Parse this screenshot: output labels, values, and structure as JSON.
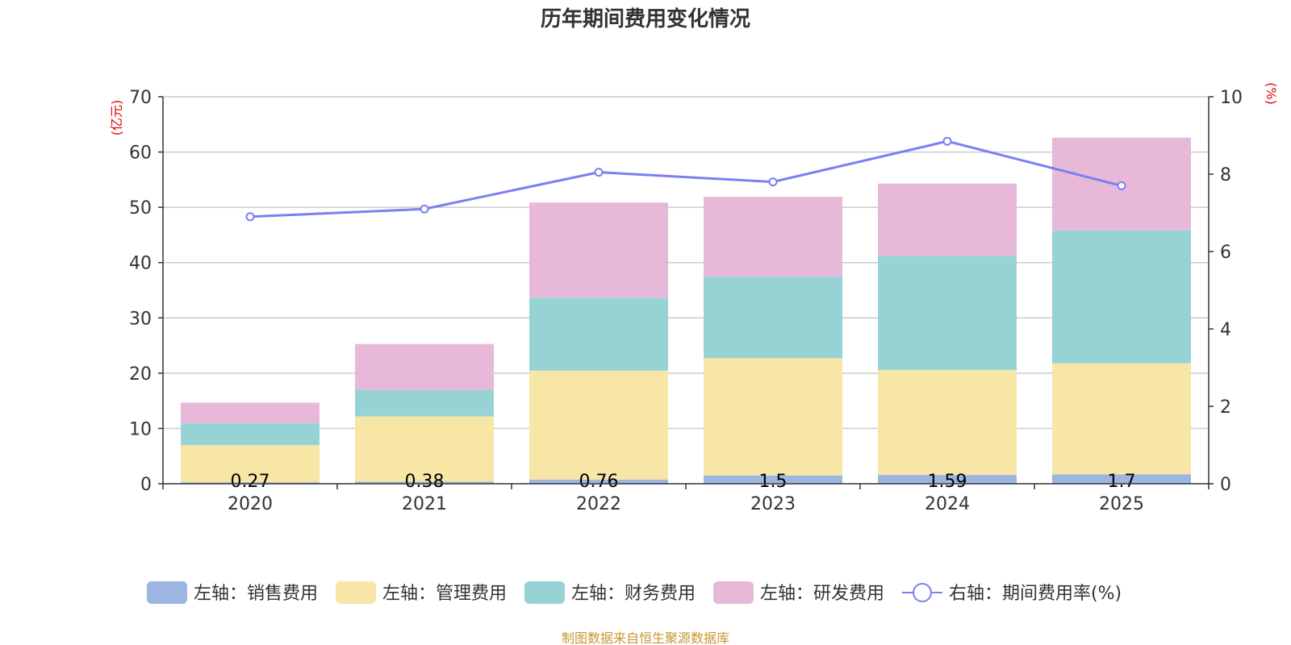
{
  "chart_data": {
    "type": "bar",
    "title": "历年期间费用变化情况",
    "categories": [
      "2020",
      "2021",
      "2022",
      "2023",
      "2024",
      "2025"
    ],
    "left_axis": {
      "unit_label": "(亿元)",
      "min": 0,
      "max": 70,
      "ticks": [
        0,
        10,
        20,
        30,
        40,
        50,
        60,
        70
      ]
    },
    "right_axis": {
      "unit_label": "(%)",
      "min": 0,
      "max": 10,
      "ticks": [
        0,
        2,
        4,
        6,
        8,
        10
      ]
    },
    "stacked": true,
    "series": [
      {
        "name": "左轴：销售费用",
        "axis": "left",
        "color": "#9cb5e1",
        "values": [
          0.27,
          0.38,
          0.76,
          1.5,
          1.59,
          1.7
        ],
        "value_labels": [
          "0.27",
          "0.38",
          "0.76",
          "1.5",
          "1.59",
          "1.7"
        ]
      },
      {
        "name": "左轴：管理费用",
        "axis": "left",
        "color": "#f8e6a7",
        "values": [
          6.7,
          11.8,
          19.7,
          21.2,
          19.0,
          20.1
        ]
      },
      {
        "name": "左轴：财务费用",
        "axis": "left",
        "color": "#97d3d4",
        "values": [
          4.0,
          4.8,
          13.2,
          14.8,
          20.6,
          24.0
        ]
      },
      {
        "name": "左轴：研发费用",
        "axis": "left",
        "color": "#e8b8d8",
        "values": [
          3.7,
          8.3,
          17.2,
          14.4,
          13.1,
          16.8
        ]
      }
    ],
    "line_series": [
      {
        "name": "右轴：期间费用率(%)",
        "axis": "right",
        "color": "#7b7ff0",
        "type": "line",
        "values": [
          6.9,
          7.1,
          8.05,
          7.8,
          8.85,
          7.7
        ]
      }
    ],
    "legend_position": "bottom",
    "grid": true
  },
  "footer": {
    "source": "制图数据来自恒生聚源数据库"
  }
}
